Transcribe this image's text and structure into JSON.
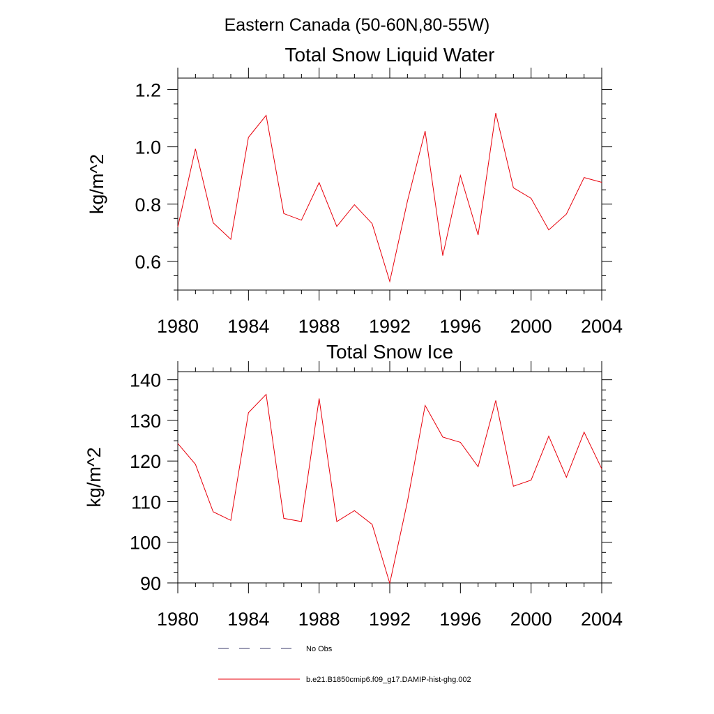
{
  "figure": {
    "title": "Eastern Canada (50-60N,80-55W)"
  },
  "legend": {
    "items": [
      {
        "label": "No Obs",
        "style": "dashed",
        "color": "#3a3a6a"
      },
      {
        "label": "b.e21.B1850cmip6.f09_g17.DAMIP-hist-ghg.002",
        "style": "solid",
        "color": "#e8000b"
      }
    ]
  },
  "chart_data": [
    {
      "type": "line",
      "title": "Total Snow Liquid Water",
      "xlabel": "",
      "ylabel": "kg/m^2",
      "xlim": [
        1980,
        2004
      ],
      "ylim": [
        0.5,
        1.24
      ],
      "xticks": [
        1980,
        1984,
        1988,
        1992,
        1996,
        2000,
        2004
      ],
      "yticks": [
        0.6,
        0.8,
        1.0,
        1.2
      ],
      "ytick_labels": [
        "0.6",
        "0.8",
        "1.0",
        "1.2"
      ],
      "x": [
        1980,
        1981,
        1982,
        1983,
        1984,
        1985,
        1986,
        1987,
        1988,
        1989,
        1990,
        1991,
        1992,
        1993,
        1994,
        1995,
        1996,
        1997,
        1998,
        1999,
        2000,
        2001,
        2002,
        2003,
        2004
      ],
      "series": [
        {
          "name": "b.e21.B1850cmip6.f09_g17.DAMIP-hist-ghg.002",
          "color": "#e8000b",
          "values": [
            0.72,
            0.993,
            0.735,
            0.677,
            1.033,
            1.11,
            0.767,
            0.744,
            0.875,
            0.722,
            0.798,
            0.732,
            0.53,
            0.81,
            1.055,
            0.62,
            0.9,
            0.692,
            1.118,
            0.857,
            0.82,
            0.71,
            0.765,
            0.893,
            0.876
          ]
        }
      ],
      "grid": false
    },
    {
      "type": "line",
      "title": "Total Snow Ice",
      "xlabel": "",
      "ylabel": "kg/m^2",
      "xlim": [
        1980,
        2004
      ],
      "ylim": [
        90,
        142
      ],
      "xticks": [
        1980,
        1984,
        1988,
        1992,
        1996,
        2000,
        2004
      ],
      "yticks": [
        90,
        100,
        110,
        120,
        130,
        140
      ],
      "ytick_labels": [
        "90",
        "100",
        "110",
        "120",
        "130",
        "140"
      ],
      "x": [
        1980,
        1981,
        1982,
        1983,
        1984,
        1985,
        1986,
        1987,
        1988,
        1989,
        1990,
        1991,
        1992,
        1993,
        1994,
        1995,
        1996,
        1997,
        1998,
        1999,
        2000,
        2001,
        2002,
        2003,
        2004
      ],
      "series": [
        {
          "name": "b.e21.B1850cmip6.f09_g17.DAMIP-hist-ghg.002",
          "color": "#e8000b",
          "values": [
            124.3,
            119.2,
            107.5,
            105.4,
            131.9,
            136.4,
            105.9,
            105.1,
            135.4,
            105.1,
            107.8,
            104.4,
            89.9,
            110.0,
            133.7,
            125.9,
            124.6,
            118.6,
            134.9,
            113.8,
            115.3,
            126.1,
            116.0,
            127.1,
            118.1
          ]
        }
      ],
      "grid": false
    }
  ]
}
